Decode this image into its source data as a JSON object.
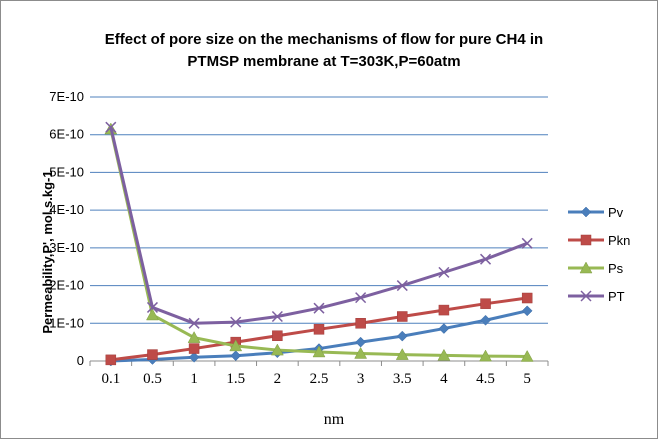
{
  "chart_data": {
    "type": "line",
    "title_lines": [
      "Effect of pore size on the mechanisms of flow for pure CH4 in",
      "PTMSP membrane at T=303K,P=60atm"
    ],
    "xlabel": "nm",
    "ylabel": "Permeability,P', mol.s.kg-1",
    "categories": [
      "0.1",
      "0.5",
      "1",
      "1.5",
      "2",
      "2.5",
      "3",
      "3.5",
      "4",
      "4.5",
      "5"
    ],
    "y_ticks": [
      {
        "value": 0,
        "label": "0"
      },
      {
        "value": 1e-10,
        "label": "1E-10"
      },
      {
        "value": 2e-10,
        "label": "2E-10"
      },
      {
        "value": 3e-10,
        "label": "3E-10"
      },
      {
        "value": 4e-10,
        "label": "4E-10"
      },
      {
        "value": 5e-10,
        "label": "5E-10"
      },
      {
        "value": 6e-10,
        "label": "6E-10"
      },
      {
        "value": 7e-10,
        "label": "7E-10"
      }
    ],
    "ylim": [
      0,
      7e-10
    ],
    "grid": true,
    "legend_position": "right",
    "series": [
      {
        "name": "Pv",
        "color": "#4a7ebb",
        "marker": "diamond",
        "values": [
          0.0,
          4e-12,
          1e-11,
          1.4e-11,
          2.2e-11,
          3.3e-11,
          5e-11,
          6.6e-11,
          8.6e-11,
          1.08e-10,
          1.33e-10
        ]
      },
      {
        "name": "Pkn",
        "color": "#be4b48",
        "marker": "square",
        "values": [
          3e-12,
          1.7e-11,
          3.3e-11,
          5e-11,
          6.7e-11,
          8.4e-11,
          1e-10,
          1.18e-10,
          1.35e-10,
          1.52e-10,
          1.67e-10
        ]
      },
      {
        "name": "Ps",
        "color": "#98b954",
        "marker": "triangle",
        "values": [
          6.15e-10,
          1.22e-10,
          6.2e-11,
          4e-11,
          2.9e-11,
          2.4e-11,
          2e-11,
          1.7e-11,
          1.5e-11,
          1.3e-11,
          1.2e-11
        ]
      },
      {
        "name": "PT",
        "color": "#7d60a0",
        "marker": "x",
        "values": [
          6.2e-10,
          1.42e-10,
          1e-10,
          1.03e-10,
          1.18e-10,
          1.4e-10,
          1.68e-10,
          2e-10,
          2.35e-10,
          2.7e-10,
          3.12e-10
        ]
      }
    ]
  }
}
